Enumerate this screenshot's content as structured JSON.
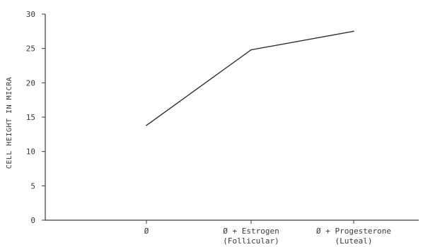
{
  "chart_data": {
    "type": "line",
    "categories": [
      "Ø",
      "Ø + Estrogen\n(Follicular)",
      "Ø + Progesterone\n(Luteal)"
    ],
    "series": [
      {
        "values": [
          13.8,
          24.8,
          27.5
        ]
      }
    ],
    "ylabel": "CELL HEIGHT IN MICRA",
    "xlabel": "",
    "title": "",
    "ylim": [
      0,
      30
    ],
    "yticks": [
      0,
      5,
      10,
      15,
      20,
      25,
      30
    ],
    "grid": false,
    "colors": {
      "line": "#2e2e2e",
      "axis": "#3a3a3a"
    }
  }
}
